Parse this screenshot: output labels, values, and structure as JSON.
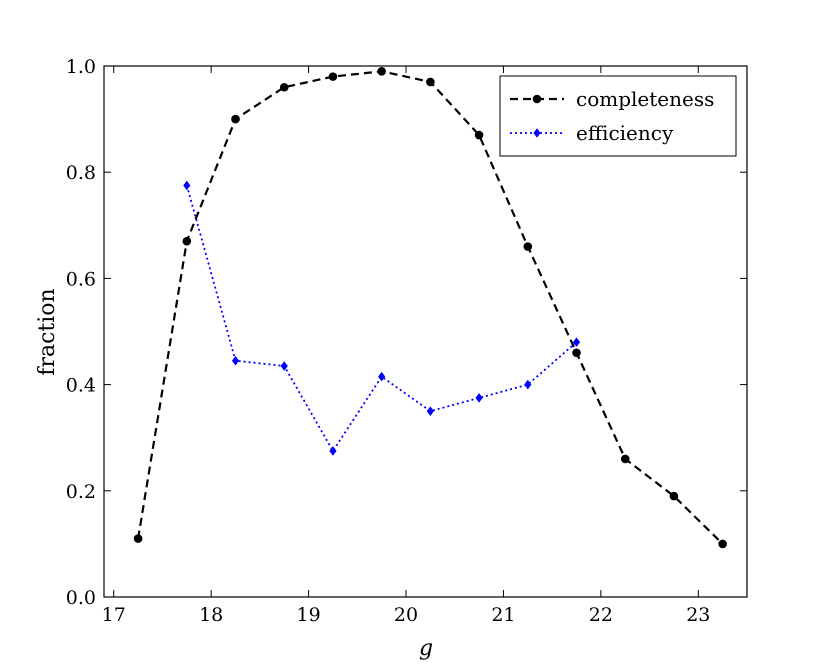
{
  "chart_data": {
    "type": "line",
    "xlabel": "g",
    "ylabel": "fraction",
    "xlim": [
      16.9,
      23.5
    ],
    "ylim": [
      0.0,
      1.0
    ],
    "xticks": [
      17,
      18,
      19,
      20,
      21,
      22,
      23
    ],
    "yticks": [
      0.0,
      0.2,
      0.4,
      0.6,
      0.8,
      1.0
    ],
    "xtick_labels": [
      "17",
      "18",
      "19",
      "20",
      "21",
      "22",
      "23"
    ],
    "ytick_labels": [
      "0.0",
      "0.2",
      "0.4",
      "0.6",
      "0.8",
      "1.0"
    ],
    "grid": false,
    "legend": "top-right",
    "series": [
      {
        "name": "completeness",
        "color": "#000000",
        "line_style": "dashed",
        "marker": "circle",
        "x": [
          17.25,
          17.75,
          18.25,
          18.75,
          19.25,
          19.75,
          20.25,
          20.75,
          21.25,
          21.75,
          22.25,
          22.75,
          23.25
        ],
        "y": [
          0.11,
          0.67,
          0.9,
          0.96,
          0.98,
          0.99,
          0.97,
          0.87,
          0.66,
          0.46,
          0.26,
          0.19,
          0.1
        ]
      },
      {
        "name": "efficiency",
        "color": "#0000ff",
        "line_style": "dotted",
        "marker": "diamond",
        "x": [
          17.75,
          18.25,
          18.75,
          19.25,
          19.75,
          20.25,
          20.75,
          21.25,
          21.75
        ],
        "y": [
          0.775,
          0.445,
          0.435,
          0.275,
          0.415,
          0.35,
          0.375,
          0.4,
          0.48
        ]
      }
    ]
  }
}
